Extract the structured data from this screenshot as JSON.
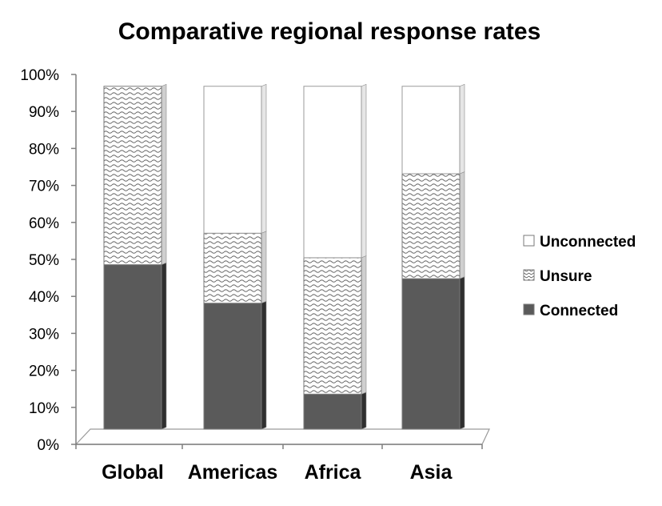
{
  "chart_data": {
    "type": "bar",
    "stacked": true,
    "percent_stacked": true,
    "title": "Comparative regional response rates",
    "xlabel": "",
    "ylabel": "",
    "ylim": [
      0,
      100
    ],
    "y_ticks": [
      "0%",
      "10%",
      "20%",
      "30%",
      "40%",
      "50%",
      "60%",
      "70%",
      "80%",
      "90%",
      "100%"
    ],
    "categories": [
      "Global",
      "Americas",
      "Africa",
      "Asia"
    ],
    "series": [
      {
        "name": "Connected",
        "values": [
          47,
          36,
          10,
          43
        ],
        "color": "#5a5a5a",
        "fill": "solid"
      },
      {
        "name": "Unsure",
        "values": [
          51,
          20,
          39,
          30
        ],
        "color": "#7f7f7f",
        "fill": "wave-pattern"
      },
      {
        "name": "Unconnected",
        "values": [
          0,
          42,
          49,
          25
        ],
        "color": "#ffffff",
        "fill": "solid"
      }
    ],
    "legend": {
      "placement": "right",
      "order": [
        "Unconnected",
        "Unsure",
        "Connected"
      ]
    },
    "grid": false,
    "style": "3d-column"
  }
}
